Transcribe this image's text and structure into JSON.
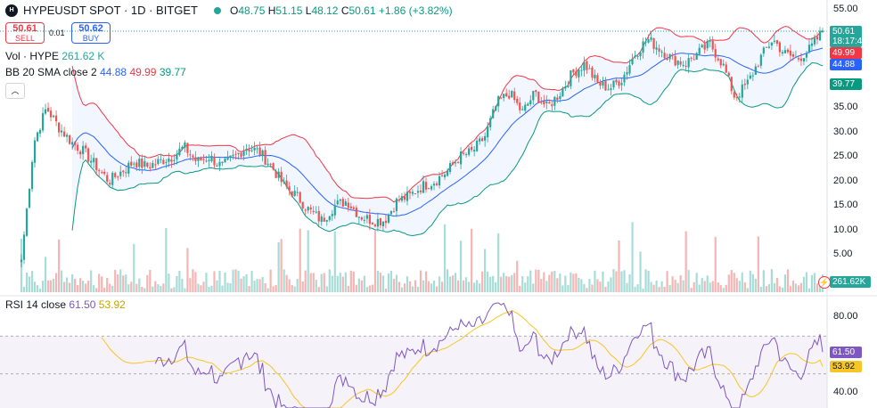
{
  "header": {
    "symbol_line": "HYPEUSDT SPOT · 1D · BITGET",
    "logo_text": "H",
    "ohlc": {
      "o_label": "O",
      "o": "48.75",
      "h_label": "H",
      "h": "51.15",
      "l_label": "L",
      "l": "48.12",
      "c_label": "C",
      "c": "50.61",
      "chg": "+1.86 (+3.82%)"
    }
  },
  "trade": {
    "sell_price": "50.61",
    "sell_label": "SELL",
    "spread": "0.01",
    "buy_price": "50.62",
    "buy_label": "BUY"
  },
  "vol_legend": {
    "label": "Vol · HYPE",
    "value": "261.62 K"
  },
  "bb_legend": {
    "label": "BB 20 SMA close 2",
    "basis": "44.88",
    "upper": "49.99",
    "lower": "39.77"
  },
  "rsi_legend": {
    "label": "RSI 14 close",
    "rsi": "61.50",
    "ma": "53.92"
  },
  "price_axis": {
    "ticks": [
      "55.00",
      "50.00",
      "45.00",
      "40.00",
      "35.00",
      "30.00",
      "25.00",
      "20.00",
      "15.00",
      "10.00",
      "5.00"
    ]
  },
  "rsi_axis": {
    "ticks": [
      "80.00",
      "60.00",
      "40.00"
    ]
  },
  "price_tags": {
    "last": "50.61",
    "countdown": "18:17:44",
    "upper": "49.99",
    "basis": "44.88",
    "lower": "39.77",
    "volume": "261.62K",
    "rsi": "61.50",
    "rsi_ma": "53.92"
  },
  "colors": {
    "up": "#26a69a",
    "down": "#ef5350",
    "upper": "#f23645",
    "basis": "#2962ff",
    "lower": "#089981",
    "rsi": "#7e57c2",
    "rsi_ma": "#f7c525"
  },
  "chart_data": [
    {
      "type": "candlestick",
      "title": "HYPEUSDT SPOT · 1D · BITGET",
      "ylim": [
        0,
        56
      ],
      "series": [
        {
          "name": "price",
          "anchors_close": [
            4,
            28,
            35,
            31,
            28,
            26,
            23,
            20,
            22,
            24,
            23,
            24,
            25,
            27,
            24,
            25,
            23,
            25,
            27,
            26,
            23,
            19,
            17,
            14,
            12,
            15,
            16,
            13,
            12,
            12,
            16,
            17,
            19,
            20,
            22,
            25,
            26,
            29,
            36,
            38,
            34,
            38,
            35,
            38,
            42,
            44,
            40,
            39,
            41,
            46,
            49,
            47,
            45,
            44,
            46,
            48,
            44,
            37,
            40,
            45,
            49,
            46,
            45,
            47,
            50.61
          ]
        },
        {
          "name": "BB 20 SMA close 2",
          "basis": "44.88",
          "upper": "49.99",
          "lower": "39.77"
        }
      ]
    },
    {
      "type": "bar",
      "name": "Vol · HYPE",
      "last": "261.62 K"
    },
    {
      "type": "line",
      "name": "RSI 14 close",
      "ylim": [
        30,
        90
      ],
      "levels": [
        70,
        50,
        30
      ],
      "last_rsi": 61.5,
      "last_ma": 53.92
    }
  ]
}
